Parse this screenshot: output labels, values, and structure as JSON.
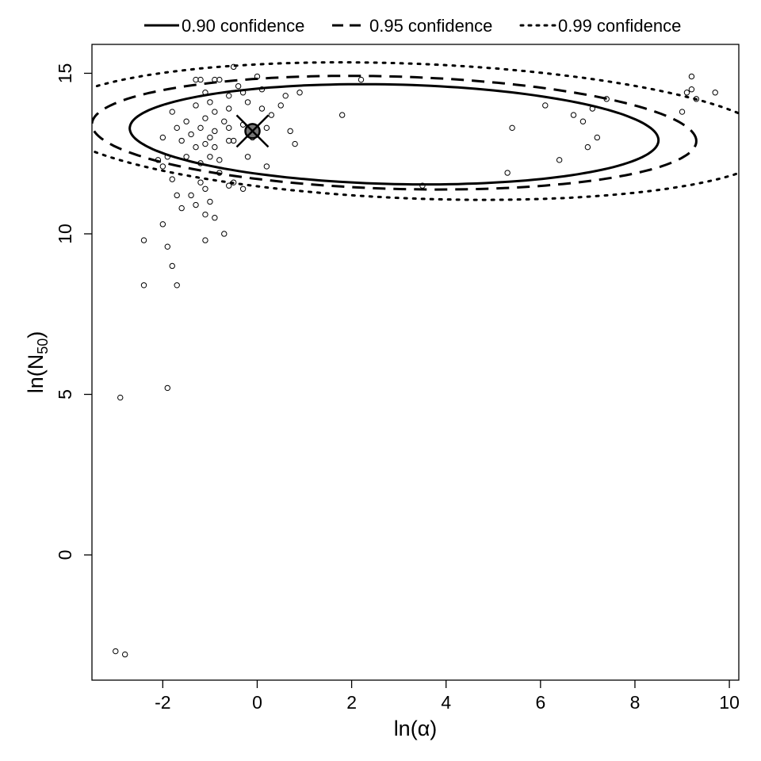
{
  "chart_data": {
    "type": "scatter",
    "title": "",
    "xlabel": "ln(α)",
    "ylabel_main": "ln(N",
    "ylabel_sub": "50",
    "ylabel_close": ")",
    "xlim": [
      -3.5,
      10.2
    ],
    "ylim": [
      -3.9,
      15.9
    ],
    "x_ticks": [
      -2,
      0,
      2,
      4,
      6,
      8,
      10
    ],
    "x_tick_labels": [
      "-2",
      "0",
      "2",
      "4",
      "6",
      "8",
      "10"
    ],
    "y_ticks": [
      0,
      5,
      10,
      15
    ],
    "y_tick_labels": [
      "0",
      "5",
      "10",
      "15"
    ],
    "grid": false,
    "legend_position": "top",
    "legend": [
      {
        "label": "0.90 confidence",
        "dash": "solid"
      },
      {
        "label": "0.95 confidence",
        "dash": "dashed"
      },
      {
        "label": "0.99 confidence",
        "dash": "dotted"
      }
    ],
    "mle_estimate": {
      "x": -0.1,
      "y": 13.2
    },
    "confidence_regions": [
      {
        "name": "0.90 confidence",
        "center_x": 2.9,
        "center_y": 13.1,
        "semi_x": 5.6,
        "semi_y": 1.55,
        "tilt": 0.12,
        "dash": "solid"
      },
      {
        "name": "0.95 confidence",
        "center_x": 2.9,
        "center_y": 13.15,
        "semi_x": 6.4,
        "semi_y": 1.75,
        "tilt": 0.15,
        "dash": "dashed"
      },
      {
        "name": "0.99 confidence",
        "center_x": 3.3,
        "center_y": 13.2,
        "semi_x": 7.7,
        "semi_y": 2.1,
        "tilt": 0.2,
        "dash": "dotted"
      }
    ],
    "points": [
      [
        -1.9,
        12.4
      ],
      [
        -1.8,
        13.8
      ],
      [
        -1.7,
        13.3
      ],
      [
        -1.6,
        12.9
      ],
      [
        -1.5,
        12.4
      ],
      [
        -1.5,
        13.5
      ],
      [
        -1.4,
        13.1
      ],
      [
        -1.3,
        14.0
      ],
      [
        -1.3,
        12.7
      ],
      [
        -1.2,
        14.8
      ],
      [
        -1.2,
        13.3
      ],
      [
        -1.2,
        12.2
      ],
      [
        -1.1,
        14.4
      ],
      [
        -1.1,
        13.6
      ],
      [
        -1.0,
        14.1
      ],
      [
        -1.0,
        13.0
      ],
      [
        -1.0,
        12.4
      ],
      [
        -0.9,
        13.8
      ],
      [
        -0.9,
        13.2
      ],
      [
        -0.9,
        12.7
      ],
      [
        -0.8,
        14.8
      ],
      [
        -0.8,
        12.3
      ],
      [
        -0.7,
        13.5
      ],
      [
        -0.6,
        14.3
      ],
      [
        -0.6,
        13.9
      ],
      [
        -0.6,
        13.3
      ],
      [
        -0.5,
        12.9
      ],
      [
        -0.5,
        11.6
      ],
      [
        -0.4,
        14.6
      ],
      [
        -0.3,
        14.4
      ],
      [
        -0.3,
        13.4
      ],
      [
        -0.2,
        12.4
      ],
      [
        -0.2,
        14.1
      ],
      [
        -0.1,
        13.0
      ],
      [
        0.0,
        14.9
      ],
      [
        0.1,
        14.5
      ],
      [
        0.1,
        13.9
      ],
      [
        0.2,
        13.3
      ],
      [
        0.2,
        12.1
      ],
      [
        0.3,
        13.7
      ],
      [
        0.5,
        14.0
      ],
      [
        0.6,
        14.3
      ],
      [
        0.7,
        13.2
      ],
      [
        0.8,
        12.8
      ],
      [
        0.9,
        14.4
      ],
      [
        -0.5,
        15.2
      ],
      [
        -0.9,
        14.8
      ],
      [
        -1.3,
        14.8
      ],
      [
        -0.6,
        12.9
      ],
      [
        -1.1,
        12.8
      ],
      [
        -1.4,
        11.2
      ],
      [
        -1.3,
        10.9
      ],
      [
        -1.2,
        11.6
      ],
      [
        -1.1,
        11.4
      ],
      [
        -1.0,
        11.0
      ],
      [
        -1.7,
        11.2
      ],
      [
        -1.8,
        11.7
      ],
      [
        -0.8,
        11.9
      ],
      [
        -0.3,
        11.4
      ],
      [
        -0.6,
        11.5
      ],
      [
        -2.0,
        12.1
      ],
      [
        -2.1,
        12.3
      ],
      [
        -2.0,
        13.0
      ],
      [
        -1.6,
        10.8
      ],
      [
        -1.1,
        10.6
      ],
      [
        -0.9,
        10.5
      ],
      [
        -1.1,
        9.8
      ],
      [
        -0.7,
        10.0
      ],
      [
        -2.0,
        10.3
      ],
      [
        -2.4,
        9.8
      ],
      [
        -1.9,
        9.6
      ],
      [
        -1.8,
        9.0
      ],
      [
        -1.7,
        8.4
      ],
      [
        -2.4,
        8.4
      ],
      [
        -2.9,
        4.9
      ],
      [
        -1.9,
        5.2
      ],
      [
        -3.0,
        -3.0
      ],
      [
        -2.8,
        -3.1
      ],
      [
        1.8,
        13.7
      ],
      [
        2.2,
        14.8
      ],
      [
        3.5,
        11.5
      ],
      [
        5.3,
        11.9
      ],
      [
        5.4,
        13.3
      ],
      [
        6.1,
        14.0
      ],
      [
        6.4,
        12.3
      ],
      [
        6.7,
        13.7
      ],
      [
        6.9,
        13.5
      ],
      [
        7.0,
        12.7
      ],
      [
        7.1,
        13.9
      ],
      [
        7.2,
        13.0
      ],
      [
        7.4,
        14.2
      ],
      [
        9.0,
        13.8
      ],
      [
        9.1,
        14.4
      ],
      [
        9.2,
        14.9
      ],
      [
        9.2,
        14.5
      ],
      [
        9.3,
        14.2
      ],
      [
        9.7,
        14.4
      ]
    ]
  }
}
